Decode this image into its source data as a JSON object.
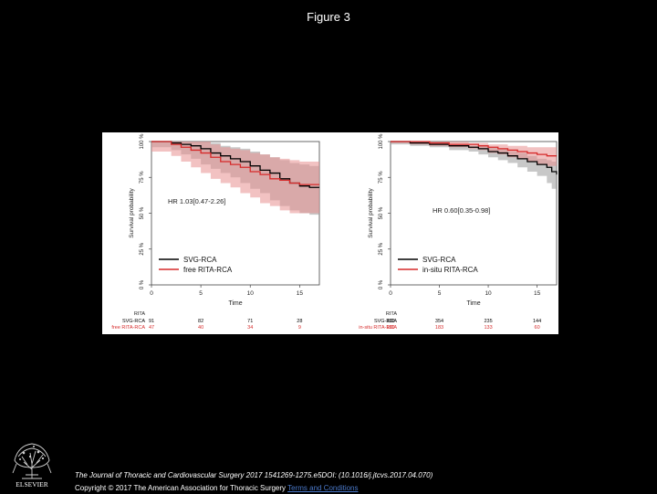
{
  "header": {
    "title": "Figure 3"
  },
  "chart_data": [
    {
      "type": "line",
      "xlabel": "Time",
      "ylabel": "Survival probability",
      "xlim": [
        0,
        17
      ],
      "ylim": [
        0,
        100
      ],
      "xticks": [
        "0",
        "5",
        "10",
        "15"
      ],
      "yticks": [
        "0 %",
        "25 %",
        "50 %",
        "75 %",
        "100 %"
      ],
      "annotation": "HR 1.03[0.47-2.26]",
      "legend_position": "bottom-left",
      "series": [
        {
          "name": "SVG-RCA",
          "color": "#000000",
          "band_color": "#9a9a9a",
          "x": [
            0,
            2,
            3,
            4,
            5,
            6,
            7,
            8,
            9,
            10,
            11,
            12,
            13,
            14,
            15,
            16,
            17
          ],
          "y": [
            100,
            99,
            98,
            97,
            95,
            92,
            90,
            88,
            86,
            83,
            80,
            78,
            74,
            71,
            69,
            68,
            68
          ],
          "lower": [
            100,
            96,
            94,
            91,
            88,
            84,
            81,
            78,
            75,
            71,
            67,
            64,
            59,
            55,
            52,
            50,
            49
          ],
          "upper": [
            100,
            100,
            100,
            100,
            100,
            99,
            97,
            96,
            95,
            93,
            91,
            89,
            87,
            85,
            84,
            83,
            83
          ]
        },
        {
          "name": "free RITA-RCA",
          "color": "#d62a2a",
          "band_color": "#e88f8f",
          "x": [
            0,
            2,
            3,
            4,
            5,
            6,
            7,
            8,
            9,
            10,
            11,
            12,
            13,
            14,
            15,
            16,
            17
          ],
          "y": [
            100,
            98,
            96,
            94,
            92,
            89,
            86,
            84,
            82,
            79,
            77,
            74,
            73,
            71,
            70,
            70,
            70
          ],
          "lower": [
            100,
            93,
            90,
            86,
            82,
            78,
            74,
            71,
            68,
            64,
            61,
            57,
            55,
            52,
            50,
            50,
            50
          ],
          "upper": [
            100,
            100,
            100,
            100,
            100,
            98,
            96,
            95,
            94,
            92,
            91,
            89,
            88,
            87,
            86,
            86,
            86
          ]
        }
      ],
      "risk_table": {
        "header": "RITA",
        "times": [
          0,
          5,
          10,
          15
        ],
        "rows": [
          {
            "label": "SVG-RCA",
            "color": "#000000",
            "counts": [
              "91",
              "82",
              "71",
              "28"
            ]
          },
          {
            "label": "free RITA-RCA",
            "color": "#d62a2a",
            "counts": [
              "47",
              "40",
              "34",
              "9"
            ]
          }
        ]
      }
    },
    {
      "type": "line",
      "xlabel": "Time",
      "ylabel": "Survival probability",
      "xlim": [
        0,
        17
      ],
      "ylim": [
        0,
        100
      ],
      "xticks": [
        "0",
        "5",
        "10",
        "15"
      ],
      "yticks": [
        "0 %",
        "25 %",
        "50 %",
        "75 %",
        "100 %"
      ],
      "annotation": "HR 0.60[0.35-0.98]",
      "legend_position": "bottom-left",
      "series": [
        {
          "name": "SVG-RCA",
          "color": "#000000",
          "band_color": "#9a9a9a",
          "x": [
            0,
            2,
            4,
            6,
            8,
            9,
            10,
            11,
            12,
            13,
            14,
            15,
            16,
            16.5,
            17
          ],
          "y": [
            100,
            99,
            98,
            97,
            96,
            95,
            93,
            92,
            90,
            88,
            86,
            84,
            82,
            79,
            77
          ],
          "lower": [
            100,
            98,
            97,
            96,
            94,
            93,
            91,
            89,
            87,
            85,
            82,
            79,
            76,
            71,
            67
          ],
          "upper": [
            100,
            100,
            99,
            98,
            97,
            97,
            96,
            95,
            93,
            92,
            90,
            88,
            87,
            86,
            86
          ]
        },
        {
          "name": "in-situ RITA-RCA",
          "color": "#d62a2a",
          "band_color": "#e88f8f",
          "x": [
            0,
            2,
            4,
            6,
            8,
            9,
            10,
            11,
            12,
            13,
            14,
            15,
            16,
            16.5,
            17
          ],
          "y": [
            100,
            100,
            99,
            98,
            98,
            97,
            96,
            95,
            94,
            93,
            92,
            91,
            90,
            90,
            90
          ],
          "lower": [
            100,
            99,
            98,
            97,
            96,
            95,
            94,
            92,
            91,
            89,
            88,
            86,
            84,
            83,
            83
          ],
          "upper": [
            100,
            100,
            100,
            100,
            99,
            99,
            98,
            98,
            97,
            97,
            96,
            96,
            96,
            96,
            96
          ]
        }
      ],
      "risk_table": {
        "header": "RITA",
        "times": [
          0,
          5,
          10,
          15
        ],
        "rows": [
          {
            "label": "SVG-RCA",
            "color": "#000000",
            "counts": [
              "336",
              "354",
              "235",
              "144"
            ]
          },
          {
            "label": "in-situ RITA-RCA",
            "color": "#d62a2a",
            "counts": [
              "196",
              "183",
              "133",
              "60"
            ]
          }
        ]
      }
    }
  ],
  "footer": {
    "publisher": "ELSEVIER",
    "citation": "The Journal of Thoracic and Cardiovascular Surgery 2017 1541269-1275.e5DOI: (10.1016/j.jtcvs.2017.04.070)",
    "copyright": "Copyright © 2017 The American Association for Thoracic Surgery",
    "terms_link": "Terms and Conditions"
  }
}
